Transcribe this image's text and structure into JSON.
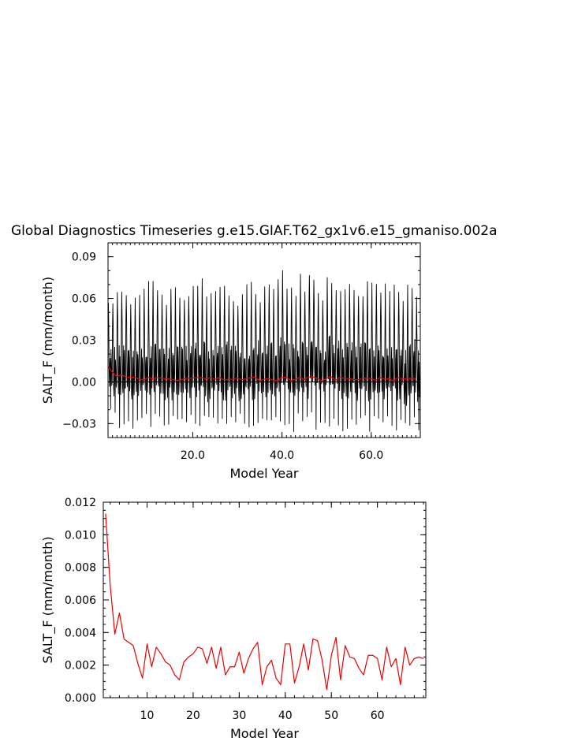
{
  "title": "Global Diagnostics Timeseries g.e15.GIAF.T62_gx1v6.e15_gmaniso.002a",
  "chart_data": [
    {
      "type": "line",
      "title": "Global Diagnostics Timeseries g.e15.GIAF.T62_gx1v6.e15_gmaniso.002a",
      "xlabel": "Model Year",
      "ylabel": "SALT_F (mm/month)",
      "xlim": [
        1,
        71
      ],
      "ylim": [
        -0.04,
        0.1
      ],
      "x_ticks": [
        20,
        40,
        60
      ],
      "x_tick_labels": [
        "20.0",
        "40.0",
        "60.0"
      ],
      "y_ticks": [
        -0.03,
        0,
        0.03,
        0.06,
        0.09
      ],
      "y_tick_labels": [
        "−0.03",
        "0.00",
        "0.03",
        "0.06",
        "0.09"
      ],
      "zero_line": true,
      "grid": false,
      "series": [
        {
          "kind": "monthly",
          "color": "#000000",
          "note": "monthly values: seasonal cycle, peaks about 0.045 to 0.081 each year, troughs about -0.020 to -0.034",
          "annual_peaks": [
            0.059,
            0.06,
            0.066,
            0.065,
            0.067,
            0.06,
            0.058,
            0.061,
            0.066,
            0.068,
            0.068,
            0.07,
            0.062,
            0.061,
            0.067,
            0.065,
            0.066,
            0.061,
            0.067,
            0.064,
            0.065,
            0.07,
            0.063,
            0.062,
            0.066,
            0.066,
            0.069,
            0.06,
            0.062,
            0.058,
            0.062,
            0.065,
            0.072,
            0.068,
            0.062,
            0.064,
            0.07,
            0.067,
            0.077,
            0.075,
            0.063,
            0.068,
            0.066,
            0.074,
            0.068,
            0.081,
            0.079,
            0.067,
            0.063,
            0.073,
            0.069,
            0.067,
            0.063,
            0.066,
            0.067,
            0.063,
            0.064,
            0.067,
            0.069,
            0.067,
            0.068,
            0.068,
            0.066,
            0.064,
            0.067,
            0.068,
            0.061,
            0.065,
            0.068,
            0.06
          ],
          "annual_troughs": [
            -0.024,
            -0.026,
            -0.029,
            -0.028,
            -0.027,
            -0.03,
            -0.025,
            -0.028,
            -0.028,
            -0.03,
            -0.025,
            -0.027,
            -0.029,
            -0.026,
            -0.03,
            -0.027,
            -0.028,
            -0.026,
            -0.029,
            -0.025,
            -0.027,
            -0.028,
            -0.03,
            -0.027,
            -0.026,
            -0.029,
            -0.031,
            -0.025,
            -0.028,
            -0.027,
            -0.026,
            -0.028,
            -0.03,
            -0.026,
            -0.028,
            -0.027,
            -0.033,
            -0.029,
            -0.027,
            -0.028,
            -0.026,
            -0.03,
            -0.027,
            -0.028,
            -0.029,
            -0.026,
            -0.03,
            -0.028,
            -0.027,
            -0.026,
            -0.029,
            -0.027,
            -0.03,
            -0.028,
            -0.026,
            -0.029,
            -0.027,
            -0.028,
            -0.03,
            -0.027,
            -0.026,
            -0.029,
            -0.028,
            -0.027,
            -0.029,
            -0.028,
            -0.033,
            -0.03,
            -0.026,
            -0.031
          ]
        },
        {
          "kind": "annual_mean",
          "color": "#ee0000",
          "x": [
            1,
            2,
            3,
            4,
            5,
            6,
            7,
            8,
            9,
            10,
            11,
            12,
            13,
            14,
            15,
            16,
            17,
            18,
            19,
            20,
            21,
            22,
            23,
            24,
            25,
            26,
            27,
            28,
            29,
            30,
            31,
            32,
            33,
            34,
            35,
            36,
            37,
            38,
            39,
            40,
            41,
            42,
            43,
            44,
            45,
            46,
            47,
            48,
            49,
            50,
            51,
            52,
            53,
            54,
            55,
            56,
            57,
            58,
            59,
            60,
            61,
            62,
            63,
            64,
            65,
            66,
            67,
            68,
            69,
            70
          ],
          "values": [
            0.0113,
            0.0069,
            0.0039,
            0.0052,
            0.0036,
            0.0034,
            0.0032,
            0.0021,
            0.0012,
            0.0033,
            0.0019,
            0.0031,
            0.0027,
            0.0022,
            0.002,
            0.0014,
            0.0011,
            0.0022,
            0.0025,
            0.0027,
            0.0031,
            0.003,
            0.0021,
            0.0031,
            0.0018,
            0.0031,
            0.0014,
            0.0019,
            0.0019,
            0.0028,
            0.0015,
            0.0024,
            0.003,
            0.0034,
            0.0008,
            0.0019,
            0.0023,
            0.0012,
            0.0008,
            0.0033,
            0.0033,
            0.0009,
            0.0019,
            0.0033,
            0.0017,
            0.0036,
            0.0035,
            0.0023,
            0.0005,
            0.0026,
            0.0037,
            0.0011,
            0.0032,
            0.0025,
            0.0024,
            0.0018,
            0.0014,
            0.0026,
            0.0026,
            0.0024,
            0.0011,
            0.0031,
            0.0019,
            0.0024,
            0.0008,
            0.0031,
            0.002,
            0.0024,
            0.0025,
            0.0024
          ]
        }
      ]
    },
    {
      "type": "line",
      "xlabel": "Model Year",
      "ylabel": "SALT_F (mm/month)",
      "xlim": [
        0.5,
        70.5
      ],
      "ylim": [
        0,
        0.012
      ],
      "x_ticks": [
        10,
        20,
        30,
        40,
        50,
        60
      ],
      "x_tick_labels": [
        "10",
        "20",
        "30",
        "40",
        "50",
        "60"
      ],
      "y_ticks": [
        0,
        0.002,
        0.004,
        0.006,
        0.008,
        0.01,
        0.012
      ],
      "y_tick_labels": [
        "0.000",
        "0.002",
        "0.004",
        "0.006",
        "0.008",
        "0.010",
        "0.012"
      ],
      "grid": false,
      "series": [
        {
          "kind": "annual_mean",
          "color": "#ee0000",
          "x": [
            1,
            2,
            3,
            4,
            5,
            6,
            7,
            8,
            9,
            10,
            11,
            12,
            13,
            14,
            15,
            16,
            17,
            18,
            19,
            20,
            21,
            22,
            23,
            24,
            25,
            26,
            27,
            28,
            29,
            30,
            31,
            32,
            33,
            34,
            35,
            36,
            37,
            38,
            39,
            40,
            41,
            42,
            43,
            44,
            45,
            46,
            47,
            48,
            49,
            50,
            51,
            52,
            53,
            54,
            55,
            56,
            57,
            58,
            59,
            60,
            61,
            62,
            63,
            64,
            65,
            66,
            67,
            68,
            69,
            70
          ],
          "values": [
            0.0113,
            0.0069,
            0.0039,
            0.0052,
            0.0036,
            0.0034,
            0.0032,
            0.0021,
            0.0012,
            0.0033,
            0.0019,
            0.0031,
            0.0027,
            0.0022,
            0.002,
            0.0014,
            0.0011,
            0.0022,
            0.0025,
            0.0027,
            0.0031,
            0.003,
            0.0021,
            0.0031,
            0.0018,
            0.0031,
            0.0014,
            0.0019,
            0.0019,
            0.0028,
            0.0015,
            0.0024,
            0.003,
            0.0034,
            0.0008,
            0.0019,
            0.0023,
            0.0012,
            0.0008,
            0.0033,
            0.0033,
            0.0009,
            0.0019,
            0.0033,
            0.0017,
            0.0036,
            0.0035,
            0.0023,
            0.0005,
            0.0026,
            0.0037,
            0.0011,
            0.0032,
            0.0025,
            0.0024,
            0.0018,
            0.0014,
            0.0026,
            0.0026,
            0.0024,
            0.0011,
            0.0031,
            0.0019,
            0.0024,
            0.0008,
            0.0031,
            0.002,
            0.0024,
            0.0025,
            0.0024
          ]
        }
      ]
    }
  ]
}
